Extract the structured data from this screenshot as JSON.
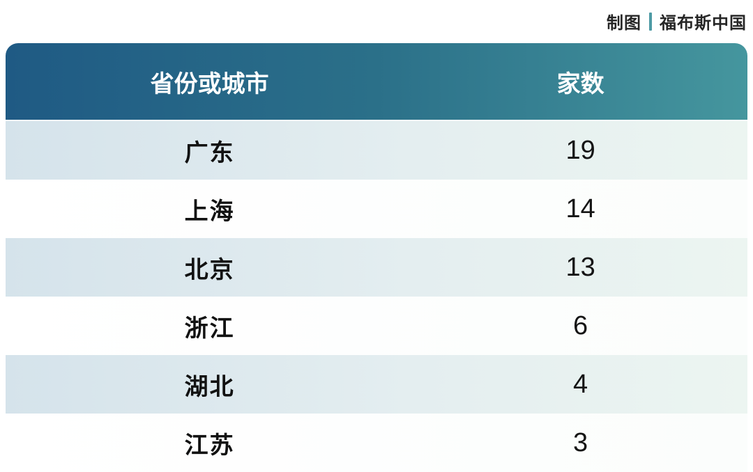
{
  "credit": {
    "label": "制图",
    "source": "福布斯中国"
  },
  "table": {
    "header": {
      "region_label": "省份或城市",
      "count_label": "家数"
    },
    "rows": [
      {
        "region": "广东",
        "count": "19"
      },
      {
        "region": "上海",
        "count": "14"
      },
      {
        "region": "北京",
        "count": "13"
      },
      {
        "region": "浙江",
        "count": "6"
      },
      {
        "region": "湖北",
        "count": "4"
      },
      {
        "region": "江苏",
        "count": "3"
      }
    ]
  },
  "colors": {
    "header_gradient_left": "#1f5a84",
    "header_gradient_right": "#45969e",
    "stripe_row_left": "#d5e3eb",
    "stripe_row_right": "#ecf5f1",
    "credit_divider": "#4e9ba5",
    "header_text": "#ffffff",
    "body_text": "#121212"
  },
  "chart_data": {
    "type": "table",
    "title": "",
    "columns": [
      "省份或城市",
      "家数"
    ],
    "categories": [
      "广东",
      "上海",
      "北京",
      "浙江",
      "湖北",
      "江苏"
    ],
    "values": [
      19,
      14,
      13,
      6,
      4,
      3
    ],
    "source_credit": "制图 | 福布斯中国",
    "layout_hints": {
      "header_style": "teal gradient, rounded top corners",
      "row_striping": "alternating light blue-gray and white",
      "last_row_clipped": true
    }
  }
}
